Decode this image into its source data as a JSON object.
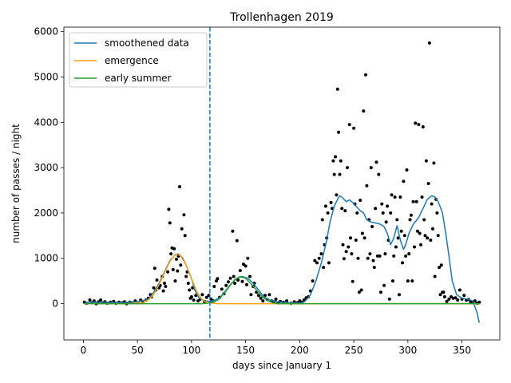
{
  "chart_data": {
    "type": "line",
    "title": "Trollenhagen 2019",
    "xlabel": "days since January 1",
    "ylabel": "number of passes / night",
    "xlim": [
      -18,
      385
    ],
    "ylim": [
      -800,
      6100
    ],
    "xticks": [
      0,
      50,
      100,
      150,
      200,
      250,
      300,
      350
    ],
    "yticks": [
      0,
      1000,
      2000,
      3000,
      4000,
      5000,
      6000
    ],
    "legend_position": "upper-left",
    "vline": {
      "x": 117,
      "style": "dashed",
      "color": "#1f77b4"
    },
    "series": [
      {
        "name": "smoothened data",
        "color": "#1f77b4",
        "points": [
          [
            1,
            20
          ],
          [
            10,
            35
          ],
          [
            20,
            30
          ],
          [
            30,
            25
          ],
          [
            40,
            30
          ],
          [
            50,
            40
          ],
          [
            60,
            100
          ],
          [
            65,
            250
          ],
          [
            70,
            450
          ],
          [
            75,
            700
          ],
          [
            80,
            950
          ],
          [
            85,
            1080
          ],
          [
            88,
            1100
          ],
          [
            92,
            1000
          ],
          [
            95,
            850
          ],
          [
            100,
            550
          ],
          [
            103,
            300
          ],
          [
            107,
            120
          ],
          [
            112,
            60
          ],
          [
            118,
            50
          ],
          [
            122,
            80
          ],
          [
            127,
            150
          ],
          [
            132,
            300
          ],
          [
            137,
            450
          ],
          [
            142,
            560
          ],
          [
            147,
            600
          ],
          [
            152,
            560
          ],
          [
            157,
            450
          ],
          [
            162,
            300
          ],
          [
            167,
            150
          ],
          [
            172,
            80
          ],
          [
            180,
            40
          ],
          [
            190,
            20
          ],
          [
            200,
            10
          ],
          [
            205,
            50
          ],
          [
            210,
            200
          ],
          [
            215,
            500
          ],
          [
            220,
            900
          ],
          [
            225,
            1400
          ],
          [
            228,
            1800
          ],
          [
            232,
            2150
          ],
          [
            235,
            2300
          ],
          [
            237,
            2380
          ],
          [
            240,
            2330
          ],
          [
            243,
            2250
          ],
          [
            246,
            2290
          ],
          [
            249,
            2230
          ],
          [
            252,
            2150
          ],
          [
            256,
            2050
          ],
          [
            259,
            2000
          ],
          [
            262,
            1850
          ],
          [
            266,
            1800
          ],
          [
            270,
            1780
          ],
          [
            274,
            1760
          ],
          [
            278,
            1700
          ],
          [
            281,
            1550
          ],
          [
            284,
            1300
          ],
          [
            287,
            1450
          ],
          [
            290,
            1720
          ],
          [
            293,
            1400
          ],
          [
            296,
            1200
          ],
          [
            298,
            1300
          ],
          [
            301,
            1550
          ],
          [
            305,
            1750
          ],
          [
            310,
            1900
          ],
          [
            314,
            2100
          ],
          [
            318,
            2300
          ],
          [
            322,
            2380
          ],
          [
            325,
            2350
          ],
          [
            328,
            2250
          ],
          [
            332,
            2000
          ],
          [
            335,
            1550
          ],
          [
            338,
            1050
          ],
          [
            341,
            500
          ],
          [
            345,
            200
          ],
          [
            350,
            120
          ],
          [
            355,
            100
          ],
          [
            360,
            60
          ],
          [
            364,
            -200
          ],
          [
            366,
            -420
          ]
        ]
      },
      {
        "name": "emergence",
        "color": "#ff9f0e",
        "points": [
          [
            1,
            0
          ],
          [
            40,
            0
          ],
          [
            55,
            25
          ],
          [
            60,
            80
          ],
          [
            65,
            200
          ],
          [
            70,
            420
          ],
          [
            75,
            680
          ],
          [
            80,
            930
          ],
          [
            84,
            1060
          ],
          [
            87,
            1090
          ],
          [
            90,
            1050
          ],
          [
            95,
            850
          ],
          [
            100,
            550
          ],
          [
            105,
            260
          ],
          [
            110,
            80
          ],
          [
            115,
            20
          ],
          [
            125,
            0
          ],
          [
            367,
            0
          ]
        ]
      },
      {
        "name": "early summer",
        "color": "#2ca02c",
        "points": [
          [
            1,
            0
          ],
          [
            110,
            0
          ],
          [
            115,
            10
          ],
          [
            120,
            30
          ],
          [
            125,
            90
          ],
          [
            130,
            220
          ],
          [
            135,
            380
          ],
          [
            140,
            530
          ],
          [
            145,
            600
          ],
          [
            150,
            560
          ],
          [
            155,
            440
          ],
          [
            160,
            300
          ],
          [
            165,
            160
          ],
          [
            170,
            70
          ],
          [
            175,
            20
          ],
          [
            180,
            0
          ],
          [
            367,
            0
          ]
        ]
      }
    ],
    "scatter": [
      [
        1,
        30
      ],
      [
        3,
        10
      ],
      [
        6,
        80
      ],
      [
        8,
        20
      ],
      [
        10,
        60
      ],
      [
        12,
        0
      ],
      [
        14,
        40
      ],
      [
        16,
        80
      ],
      [
        18,
        20
      ],
      [
        20,
        40
      ],
      [
        22,
        10
      ],
      [
        25,
        30
      ],
      [
        28,
        50
      ],
      [
        30,
        10
      ],
      [
        33,
        30
      ],
      [
        36,
        20
      ],
      [
        38,
        40
      ],
      [
        40,
        0
      ],
      [
        43,
        30
      ],
      [
        45,
        20
      ],
      [
        48,
        60
      ],
      [
        50,
        20
      ],
      [
        53,
        80
      ],
      [
        55,
        40
      ],
      [
        58,
        80
      ],
      [
        60,
        120
      ],
      [
        62,
        200
      ],
      [
        63,
        150
      ],
      [
        65,
        350
      ],
      [
        66,
        780
      ],
      [
        67,
        300
      ],
      [
        68,
        520
      ],
      [
        70,
        350
      ],
      [
        71,
        400
      ],
      [
        73,
        600
      ],
      [
        74,
        280
      ],
      [
        75,
        450
      ],
      [
        76,
        380
      ],
      [
        78,
        700
      ],
      [
        79,
        2080
      ],
      [
        80,
        1780
      ],
      [
        81,
        1100
      ],
      [
        82,
        1230
      ],
      [
        83,
        750
      ],
      [
        84,
        1210
      ],
      [
        85,
        500
      ],
      [
        86,
        980
      ],
      [
        87,
        720
      ],
      [
        88,
        1050
      ],
      [
        89,
        2580
      ],
      [
        90,
        850
      ],
      [
        91,
        1650
      ],
      [
        93,
        1960
      ],
      [
        94,
        1500
      ],
      [
        95,
        600
      ],
      [
        96,
        700
      ],
      [
        97,
        450
      ],
      [
        98,
        300
      ],
      [
        99,
        120
      ],
      [
        100,
        150
      ],
      [
        101,
        350
      ],
      [
        102,
        80
      ],
      [
        104,
        180
      ],
      [
        106,
        60
      ],
      [
        108,
        100
      ],
      [
        110,
        200
      ],
      [
        112,
        50
      ],
      [
        114,
        140
      ],
      [
        116,
        180
      ],
      [
        118,
        100
      ],
      [
        120,
        60
      ],
      [
        121,
        380
      ],
      [
        123,
        500
      ],
      [
        124,
        550
      ],
      [
        126,
        140
      ],
      [
        128,
        320
      ],
      [
        130,
        220
      ],
      [
        132,
        400
      ],
      [
        134,
        480
      ],
      [
        136,
        560
      ],
      [
        138,
        1600
      ],
      [
        139,
        600
      ],
      [
        140,
        450
      ],
      [
        142,
        1390
      ],
      [
        143,
        520
      ],
      [
        145,
        730
      ],
      [
        147,
        490
      ],
      [
        148,
        870
      ],
      [
        150,
        830
      ],
      [
        151,
        420
      ],
      [
        152,
        1000
      ],
      [
        154,
        600
      ],
      [
        155,
        200
      ],
      [
        157,
        380
      ],
      [
        158,
        450
      ],
      [
        160,
        250
      ],
      [
        162,
        180
      ],
      [
        164,
        120
      ],
      [
        166,
        60
      ],
      [
        168,
        180
      ],
      [
        170,
        90
      ],
      [
        172,
        200
      ],
      [
        174,
        60
      ],
      [
        176,
        40
      ],
      [
        178,
        100
      ],
      [
        180,
        20
      ],
      [
        182,
        50
      ],
      [
        185,
        30
      ],
      [
        188,
        60
      ],
      [
        192,
        10
      ],
      [
        195,
        40
      ],
      [
        198,
        20
      ],
      [
        200,
        60
      ],
      [
        202,
        30
      ],
      [
        204,
        80
      ],
      [
        206,
        130
      ],
      [
        208,
        150
      ],
      [
        210,
        280
      ],
      [
        212,
        500
      ],
      [
        214,
        950
      ],
      [
        216,
        900
      ],
      [
        218,
        1000
      ],
      [
        220,
        1100
      ],
      [
        221,
        1850
      ],
      [
        222,
        800
      ],
      [
        223,
        1300
      ],
      [
        224,
        2150
      ],
      [
        225,
        1450
      ],
      [
        226,
        2000
      ],
      [
        227,
        900
      ],
      [
        229,
        2230
      ],
      [
        230,
        2100
      ],
      [
        231,
        3150
      ],
      [
        232,
        2850
      ],
      [
        233,
        3240
      ],
      [
        234,
        2400
      ],
      [
        235,
        4730
      ],
      [
        236,
        3780
      ],
      [
        237,
        2850
      ],
      [
        238,
        3150
      ],
      [
        239,
        2100
      ],
      [
        240,
        1300
      ],
      [
        241,
        990
      ],
      [
        242,
        2050
      ],
      [
        243,
        1150
      ],
      [
        244,
        3000
      ],
      [
        245,
        1250
      ],
      [
        246,
        3950
      ],
      [
        247,
        1450
      ],
      [
        248,
        1100
      ],
      [
        249,
        490
      ],
      [
        250,
        3870
      ],
      [
        251,
        2200
      ],
      [
        252,
        1400
      ],
      [
        253,
        2000
      ],
      [
        254,
        1000
      ],
      [
        255,
        250
      ],
      [
        256,
        2280
      ],
      [
        257,
        300
      ],
      [
        258,
        1550
      ],
      [
        259,
        4250
      ],
      [
        260,
        1450
      ],
      [
        261,
        5050
      ],
      [
        262,
        2600
      ],
      [
        263,
        1000
      ],
      [
        264,
        1850
      ],
      [
        265,
        1100
      ],
      [
        266,
        3000
      ],
      [
        267,
        1700
      ],
      [
        268,
        950
      ],
      [
        269,
        800
      ],
      [
        270,
        2100
      ],
      [
        271,
        3120
      ],
      [
        272,
        1050
      ],
      [
        273,
        2850
      ],
      [
        274,
        1050
      ],
      [
        275,
        250
      ],
      [
        276,
        2200
      ],
      [
        277,
        2000
      ],
      [
        278,
        400
      ],
      [
        279,
        1100
      ],
      [
        280,
        1800
      ],
      [
        281,
        2150
      ],
      [
        282,
        1400
      ],
      [
        283,
        100
      ],
      [
        284,
        2000
      ],
      [
        285,
        2400
      ],
      [
        286,
        500
      ],
      [
        287,
        1050
      ],
      [
        288,
        2350
      ],
      [
        289,
        1250
      ],
      [
        290,
        1850
      ],
      [
        291,
        1450
      ],
      [
        292,
        200
      ],
      [
        293,
        2350
      ],
      [
        294,
        1600
      ],
      [
        295,
        900
      ],
      [
        296,
        2700
      ],
      [
        297,
        1500
      ],
      [
        298,
        1050
      ],
      [
        299,
        2950
      ],
      [
        300,
        500
      ],
      [
        301,
        1100
      ],
      [
        302,
        1850
      ],
      [
        303,
        1950
      ],
      [
        304,
        500
      ],
      [
        305,
        2250
      ],
      [
        306,
        1250
      ],
      [
        307,
        3980
      ],
      [
        308,
        2250
      ],
      [
        309,
        1600
      ],
      [
        310,
        3950
      ],
      [
        311,
        1550
      ],
      [
        312,
        1300
      ],
      [
        313,
        2350
      ],
      [
        314,
        3900
      ],
      [
        315,
        1850
      ],
      [
        316,
        1500
      ],
      [
        317,
        3150
      ],
      [
        318,
        1450
      ],
      [
        319,
        2650
      ],
      [
        320,
        5750
      ],
      [
        321,
        1400
      ],
      [
        322,
        2200
      ],
      [
        323,
        1650
      ],
      [
        324,
        3100
      ],
      [
        325,
        600
      ],
      [
        326,
        2300
      ],
      [
        327,
        2000
      ],
      [
        328,
        1500
      ],
      [
        329,
        800
      ],
      [
        330,
        200
      ],
      [
        331,
        850
      ],
      [
        332,
        250
      ],
      [
        333,
        250
      ],
      [
        334,
        150
      ],
      [
        336,
        50
      ],
      [
        338,
        100
      ],
      [
        340,
        150
      ],
      [
        342,
        120
      ],
      [
        344,
        130
      ],
      [
        346,
        80
      ],
      [
        348,
        300
      ],
      [
        350,
        100
      ],
      [
        352,
        180
      ],
      [
        354,
        80
      ],
      [
        356,
        90
      ],
      [
        358,
        40
      ],
      [
        360,
        20
      ],
      [
        362,
        60
      ],
      [
        364,
        10
      ],
      [
        366,
        30
      ]
    ]
  }
}
